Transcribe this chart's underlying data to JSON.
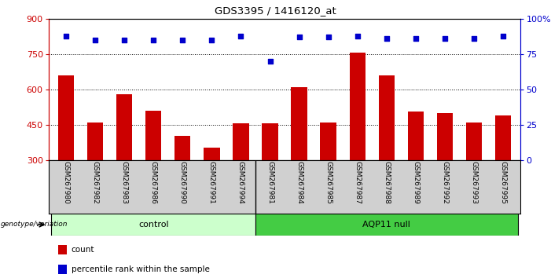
{
  "title": "GDS3395 / 1416120_at",
  "samples": [
    "GSM267980",
    "GSM267982",
    "GSM267983",
    "GSM267986",
    "GSM267990",
    "GSM267991",
    "GSM267994",
    "GSM267981",
    "GSM267984",
    "GSM267985",
    "GSM267987",
    "GSM267988",
    "GSM267989",
    "GSM267992",
    "GSM267993",
    "GSM267995"
  ],
  "bar_values": [
    660,
    460,
    580,
    510,
    405,
    355,
    455,
    455,
    610,
    460,
    755,
    660,
    505,
    500,
    460,
    490
  ],
  "percentile_values": [
    88,
    85,
    85,
    85,
    85,
    85,
    88,
    70,
    87,
    87,
    88,
    86,
    86,
    86,
    86,
    88
  ],
  "control_count": 7,
  "aqp11_count": 9,
  "bar_color": "#cc0000",
  "dot_color": "#0000cc",
  "ylim_left": [
    300,
    900
  ],
  "ylim_right": [
    0,
    100
  ],
  "yticks_left": [
    300,
    450,
    600,
    750,
    900
  ],
  "yticks_right": [
    0,
    25,
    50,
    75,
    100
  ],
  "grid_values": [
    450,
    600,
    750
  ],
  "bg_plot": "#ffffff",
  "bg_xtick": "#d0d0d0",
  "control_color": "#ccffcc",
  "aqp11_color": "#44cc44",
  "legend_count_color": "#cc0000",
  "legend_pct_color": "#0000cc"
}
